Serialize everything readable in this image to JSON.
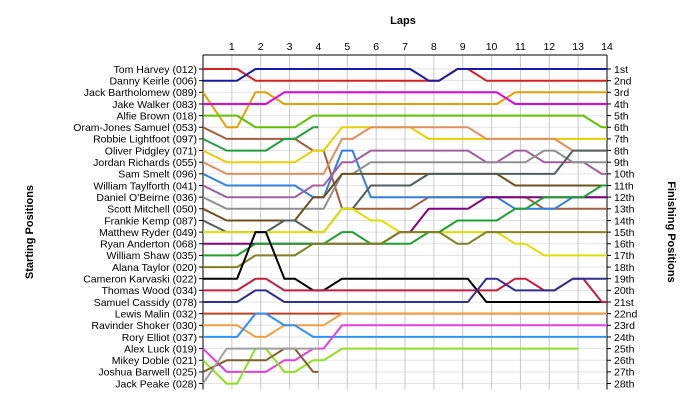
{
  "chart_data": {
    "type": "line",
    "x_axis_title": "Laps",
    "left_axis_title": "Starting Positions",
    "right_axis_title": "Finishing Positions",
    "laps": [
      1,
      2,
      3,
      4,
      5,
      6,
      7,
      8,
      9,
      10,
      11,
      12,
      13,
      14
    ],
    "drivers": [
      "Tom Harvey (012)",
      "Danny Keirle (006)",
      "Jack Bartholomew (089)",
      "Jake Walker (083)",
      "Alfie Brown (018)",
      "Oram-Jones Samuel (053)",
      "Robbie Lightfoot (097)",
      "Oliver Pidgley (071)",
      "Jordan Richards (055)",
      "Sam Smelt (096)",
      "William Taylforth (041)",
      "Daniel O'Beirne (036)",
      "Scott Mitchell (050)",
      "Frankie Kemp (087)",
      "Matthew Ryder (049)",
      "Ryan Anderton (068)",
      "William Shaw (035)",
      "Alana Taylor (020)",
      "Cameron Karvaski (022)",
      "Thomas Wood (034)",
      "Samuel Cassidy (078)",
      "Lewis Malin (032)",
      "Ravinder Shoker (030)",
      "Rory Elliot (037)",
      "Alex Luck (019)",
      "Mikey Doble (021)",
      "Joshua Barwell (025)",
      "Jack Peake (028)"
    ],
    "finishing_labels": [
      "1st",
      "2nd",
      "3rd",
      "4th",
      "5th",
      "6th",
      "7th",
      "8th",
      "9th",
      "10th",
      "11th",
      "12th",
      "13th",
      "14th",
      "15th",
      "16th",
      "17th",
      "18th",
      "19th",
      "20th",
      "21st",
      "22nd",
      "23rd",
      "24th",
      "25th",
      "26th",
      "27th",
      "28th"
    ],
    "series": [
      {
        "color": "#d62020",
        "positions": [
          1,
          2,
          2,
          2,
          2,
          2,
          2,
          2,
          1,
          2,
          2,
          2,
          2,
          2
        ]
      },
      {
        "color": "#1a1aa8",
        "positions": [
          2,
          1,
          1,
          1,
          1,
          1,
          1,
          2,
          1,
          1,
          1,
          1,
          1,
          1
        ]
      },
      {
        "color": "#e0a000",
        "positions": [
          6,
          3,
          4,
          4,
          4,
          4,
          4,
          4,
          4,
          4,
          3,
          3,
          3,
          3
        ]
      },
      {
        "color": "#e000e0",
        "positions": [
          4,
          4,
          3,
          3,
          3,
          3,
          3,
          3,
          3,
          3,
          4,
          4,
          4,
          4
        ]
      },
      {
        "color": "#60c000",
        "positions": [
          5,
          6,
          6,
          5,
          5,
          5,
          5,
          5,
          5,
          5,
          5,
          5,
          5,
          6
        ]
      },
      {
        "color": "#a06040",
        "positions": [
          7,
          7,
          7,
          8,
          13,
          13,
          13,
          12,
          12,
          12,
          12,
          13,
          13,
          13
        ]
      },
      {
        "color": "#20a040",
        "positions": [
          8,
          8,
          7,
          6
        ]
      },
      {
        "color": "#e8d000",
        "positions": [
          9,
          9,
          9,
          8,
          6,
          6,
          6,
          7,
          7,
          7,
          7,
          7,
          7,
          7
        ]
      },
      {
        "color": "#e09060",
        "positions": [
          10,
          10,
          10,
          10,
          7,
          6,
          6,
          6,
          6,
          7,
          7,
          7,
          8,
          8
        ]
      },
      {
        "color": "#3080e0",
        "positions": [
          11,
          11,
          11,
          12,
          8,
          12,
          12,
          12,
          12,
          12,
          13,
          13,
          12,
          12
        ]
      },
      {
        "color": "#a060a0",
        "positions": [
          12,
          12,
          12,
          11,
          9,
          8,
          8,
          8,
          8,
          9,
          8,
          9,
          9,
          10
        ]
      },
      {
        "color": "#909090",
        "positions": [
          13,
          13,
          13,
          13,
          10,
          9,
          9,
          9,
          9,
          9,
          9,
          8,
          9,
          9
        ]
      },
      {
        "color": "#705020",
        "positions": [
          14,
          14,
          14,
          12,
          10,
          10,
          10,
          10,
          10,
          10,
          11,
          11,
          11,
          11
        ]
      },
      {
        "color": "#506060",
        "positions": [
          15,
          15,
          14,
          15,
          13,
          11,
          11,
          10,
          10,
          10,
          10,
          10,
          8,
          8
        ]
      },
      {
        "color": "#e0e000",
        "positions": [
          15,
          15,
          15,
          15,
          13,
          14,
          15,
          15,
          15,
          15,
          16,
          17,
          17,
          17
        ]
      },
      {
        "color": "#800080",
        "positions": [
          16,
          16,
          16,
          16,
          16,
          16,
          15,
          13,
          13,
          12,
          12,
          12,
          12,
          12
        ]
      },
      {
        "color": "#20a030",
        "positions": [
          17,
          16,
          16,
          16,
          15,
          16,
          16,
          15,
          14,
          14,
          13,
          12,
          12,
          11
        ]
      },
      {
        "color": "#808020",
        "positions": [
          18,
          17,
          17,
          16,
          16,
          16,
          15,
          15,
          16,
          15,
          15,
          15,
          15,
          15
        ]
      },
      {
        "color": "#000000",
        "positions": [
          19,
          15,
          19,
          20,
          19,
          19,
          19,
          19,
          19,
          21,
          21,
          21,
          21,
          21
        ]
      },
      {
        "color": "#c02040",
        "positions": [
          20,
          19,
          20,
          20,
          20,
          20,
          20,
          20,
          20,
          20,
          19,
          20,
          19,
          21
        ]
      },
      {
        "color": "#303090",
        "positions": [
          21,
          20,
          21,
          21,
          21,
          21,
          21,
          21,
          21,
          19,
          20,
          20,
          19,
          19
        ]
      },
      {
        "color": "#c04020",
        "positions": [
          22,
          22,
          22,
          22,
          22,
          22,
          22,
          22,
          22,
          22,
          22,
          22,
          22,
          22
        ]
      },
      {
        "color": "#f0a040",
        "positions": [
          23,
          24,
          23,
          23,
          22,
          22,
          22,
          22,
          22,
          22,
          22,
          22,
          22,
          22
        ]
      },
      {
        "color": "#3090ff",
        "positions": [
          24,
          22,
          23,
          24,
          24,
          24,
          24,
          24,
          24,
          24,
          24,
          24,
          24,
          24
        ]
      },
      {
        "color": "#e040e0",
        "positions": [
          27,
          27,
          26,
          25,
          23,
          23,
          23,
          23,
          23,
          23,
          23,
          23,
          23,
          23
        ]
      },
      {
        "color": "#90e020",
        "positions": [
          28,
          25,
          27,
          26,
          25,
          25,
          25,
          25,
          25,
          25,
          25,
          25,
          25
        ]
      },
      {
        "color": "#806030",
        "positions": [
          26,
          26,
          25,
          27
        ]
      },
      {
        "color": "#a0a0a0",
        "positions": [
          25,
          25,
          25,
          25
        ]
      }
    ]
  }
}
